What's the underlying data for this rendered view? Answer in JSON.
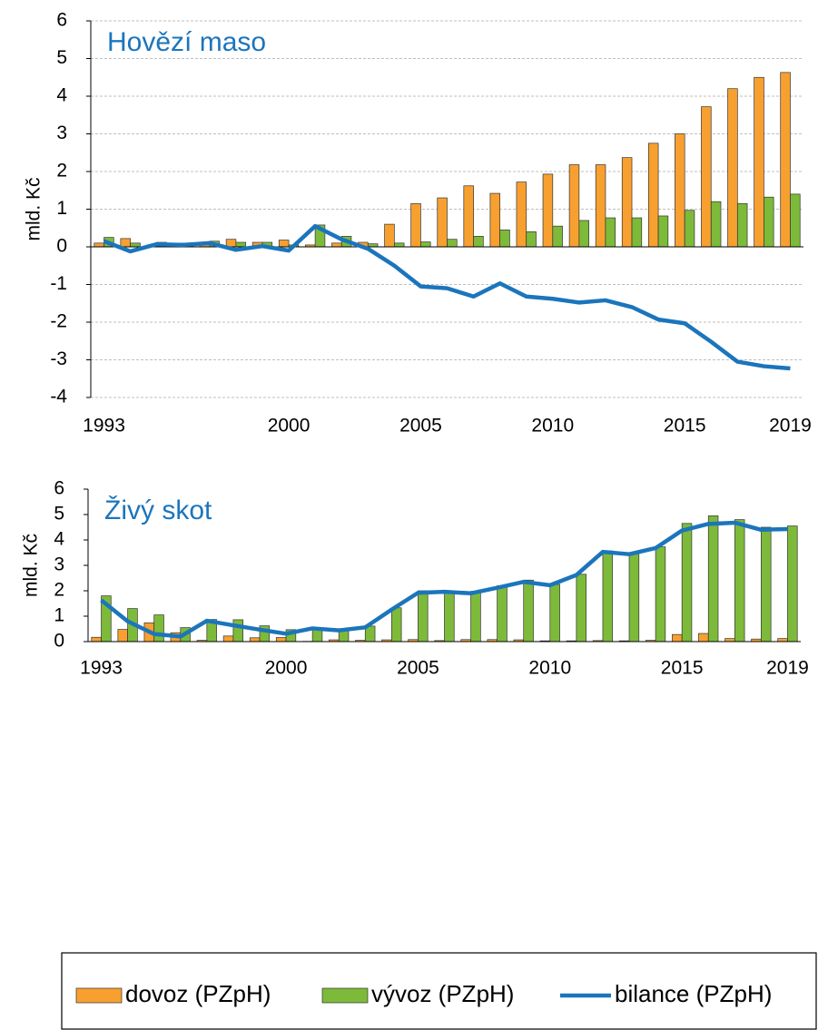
{
  "chart_data": [
    {
      "type": "bar",
      "title": "Hovězí maso",
      "ylabel": "mld. Kč",
      "grid": true,
      "categories": [
        "1993",
        null,
        null,
        null,
        null,
        null,
        null,
        "2000",
        null,
        null,
        null,
        null,
        "2005",
        null,
        null,
        null,
        null,
        "2010",
        null,
        null,
        null,
        null,
        "2015",
        null,
        null,
        null,
        "2019"
      ],
      "ylim": [
        -4,
        6
      ],
      "yticks": [
        -4,
        -3,
        -2,
        -1,
        0,
        1,
        2,
        3,
        4,
        5,
        6
      ],
      "series": [
        {
          "name": "dovoz (PZpH)",
          "type": "bar",
          "color": "#f7a030",
          "values": [
            0.1,
            0.22,
            0.05,
            0.1,
            0.12,
            0.2,
            0.12,
            0.18,
            0.05,
            0.1,
            0.12,
            0.6,
            1.15,
            1.3,
            1.62,
            1.42,
            1.72,
            1.93,
            2.18,
            2.18,
            2.37,
            2.75,
            3.0,
            3.72,
            4.2,
            4.5,
            4.63
          ]
        },
        {
          "name": "vývoz (PZpH)",
          "type": "bar",
          "color": "#7dba3a",
          "values": [
            0.25,
            0.1,
            0.12,
            0.1,
            0.15,
            0.12,
            0.12,
            0.05,
            0.58,
            0.28,
            0.08,
            0.1,
            0.13,
            0.2,
            0.28,
            0.45,
            0.4,
            0.55,
            0.7,
            0.77,
            0.77,
            0.82,
            0.97,
            1.2,
            1.15,
            1.32,
            1.4
          ]
        },
        {
          "name": "bilance (PZpH)",
          "type": "line",
          "color": "#1b75bc",
          "values": [
            0.15,
            -0.12,
            0.07,
            0.05,
            0.1,
            -0.08,
            0.02,
            -0.1,
            0.55,
            0.2,
            -0.05,
            -0.5,
            -1.05,
            -1.1,
            -1.32,
            -0.97,
            -1.32,
            -1.38,
            -1.48,
            -1.42,
            -1.6,
            -1.93,
            -2.03,
            -2.52,
            -3.05,
            -3.17,
            -3.23
          ]
        }
      ]
    },
    {
      "type": "bar",
      "title": "Živý skot",
      "ylabel": "mld. Kč",
      "grid": false,
      "categories": [
        "1993",
        null,
        null,
        null,
        null,
        null,
        null,
        "2000",
        null,
        null,
        null,
        null,
        "2005",
        null,
        null,
        null,
        null,
        "2010",
        null,
        null,
        null,
        null,
        "2015",
        null,
        null,
        null,
        "2019"
      ],
      "ylim": [
        0,
        6
      ],
      "yticks": [
        0,
        1,
        2,
        3,
        4,
        5,
        6
      ],
      "series": [
        {
          "type": "bar",
          "color": "#f7a030",
          "values": [
            0.17,
            0.48,
            0.74,
            0.35,
            0.05,
            0.22,
            0.15,
            0.16,
            0.01,
            0.07,
            0.05,
            0.07,
            0.08,
            0.04,
            0.08,
            0.08,
            0.07,
            0.03,
            0.03,
            0.04,
            0.03,
            0.05,
            0.28,
            0.32,
            0.12,
            0.1,
            0.12
          ]
        },
        {
          "type": "bar",
          "color": "#7dba3a",
          "values": [
            1.8,
            1.3,
            1.05,
            0.55,
            0.87,
            0.86,
            0.62,
            0.47,
            0.53,
            0.51,
            0.61,
            1.33,
            2.0,
            2.0,
            1.98,
            2.2,
            2.42,
            2.25,
            2.65,
            3.57,
            3.47,
            3.73,
            4.65,
            4.95,
            4.8,
            4.5,
            4.55
          ]
        },
        {
          "type": "line",
          "color": "#1b75bc",
          "values": [
            1.63,
            0.8,
            0.3,
            0.2,
            0.82,
            0.64,
            0.47,
            0.31,
            0.52,
            0.44,
            0.56,
            1.26,
            1.92,
            1.96,
            1.9,
            2.12,
            2.35,
            2.22,
            2.62,
            3.53,
            3.44,
            3.68,
            4.37,
            4.63,
            4.68,
            4.4,
            4.43
          ]
        }
      ]
    }
  ]
}
